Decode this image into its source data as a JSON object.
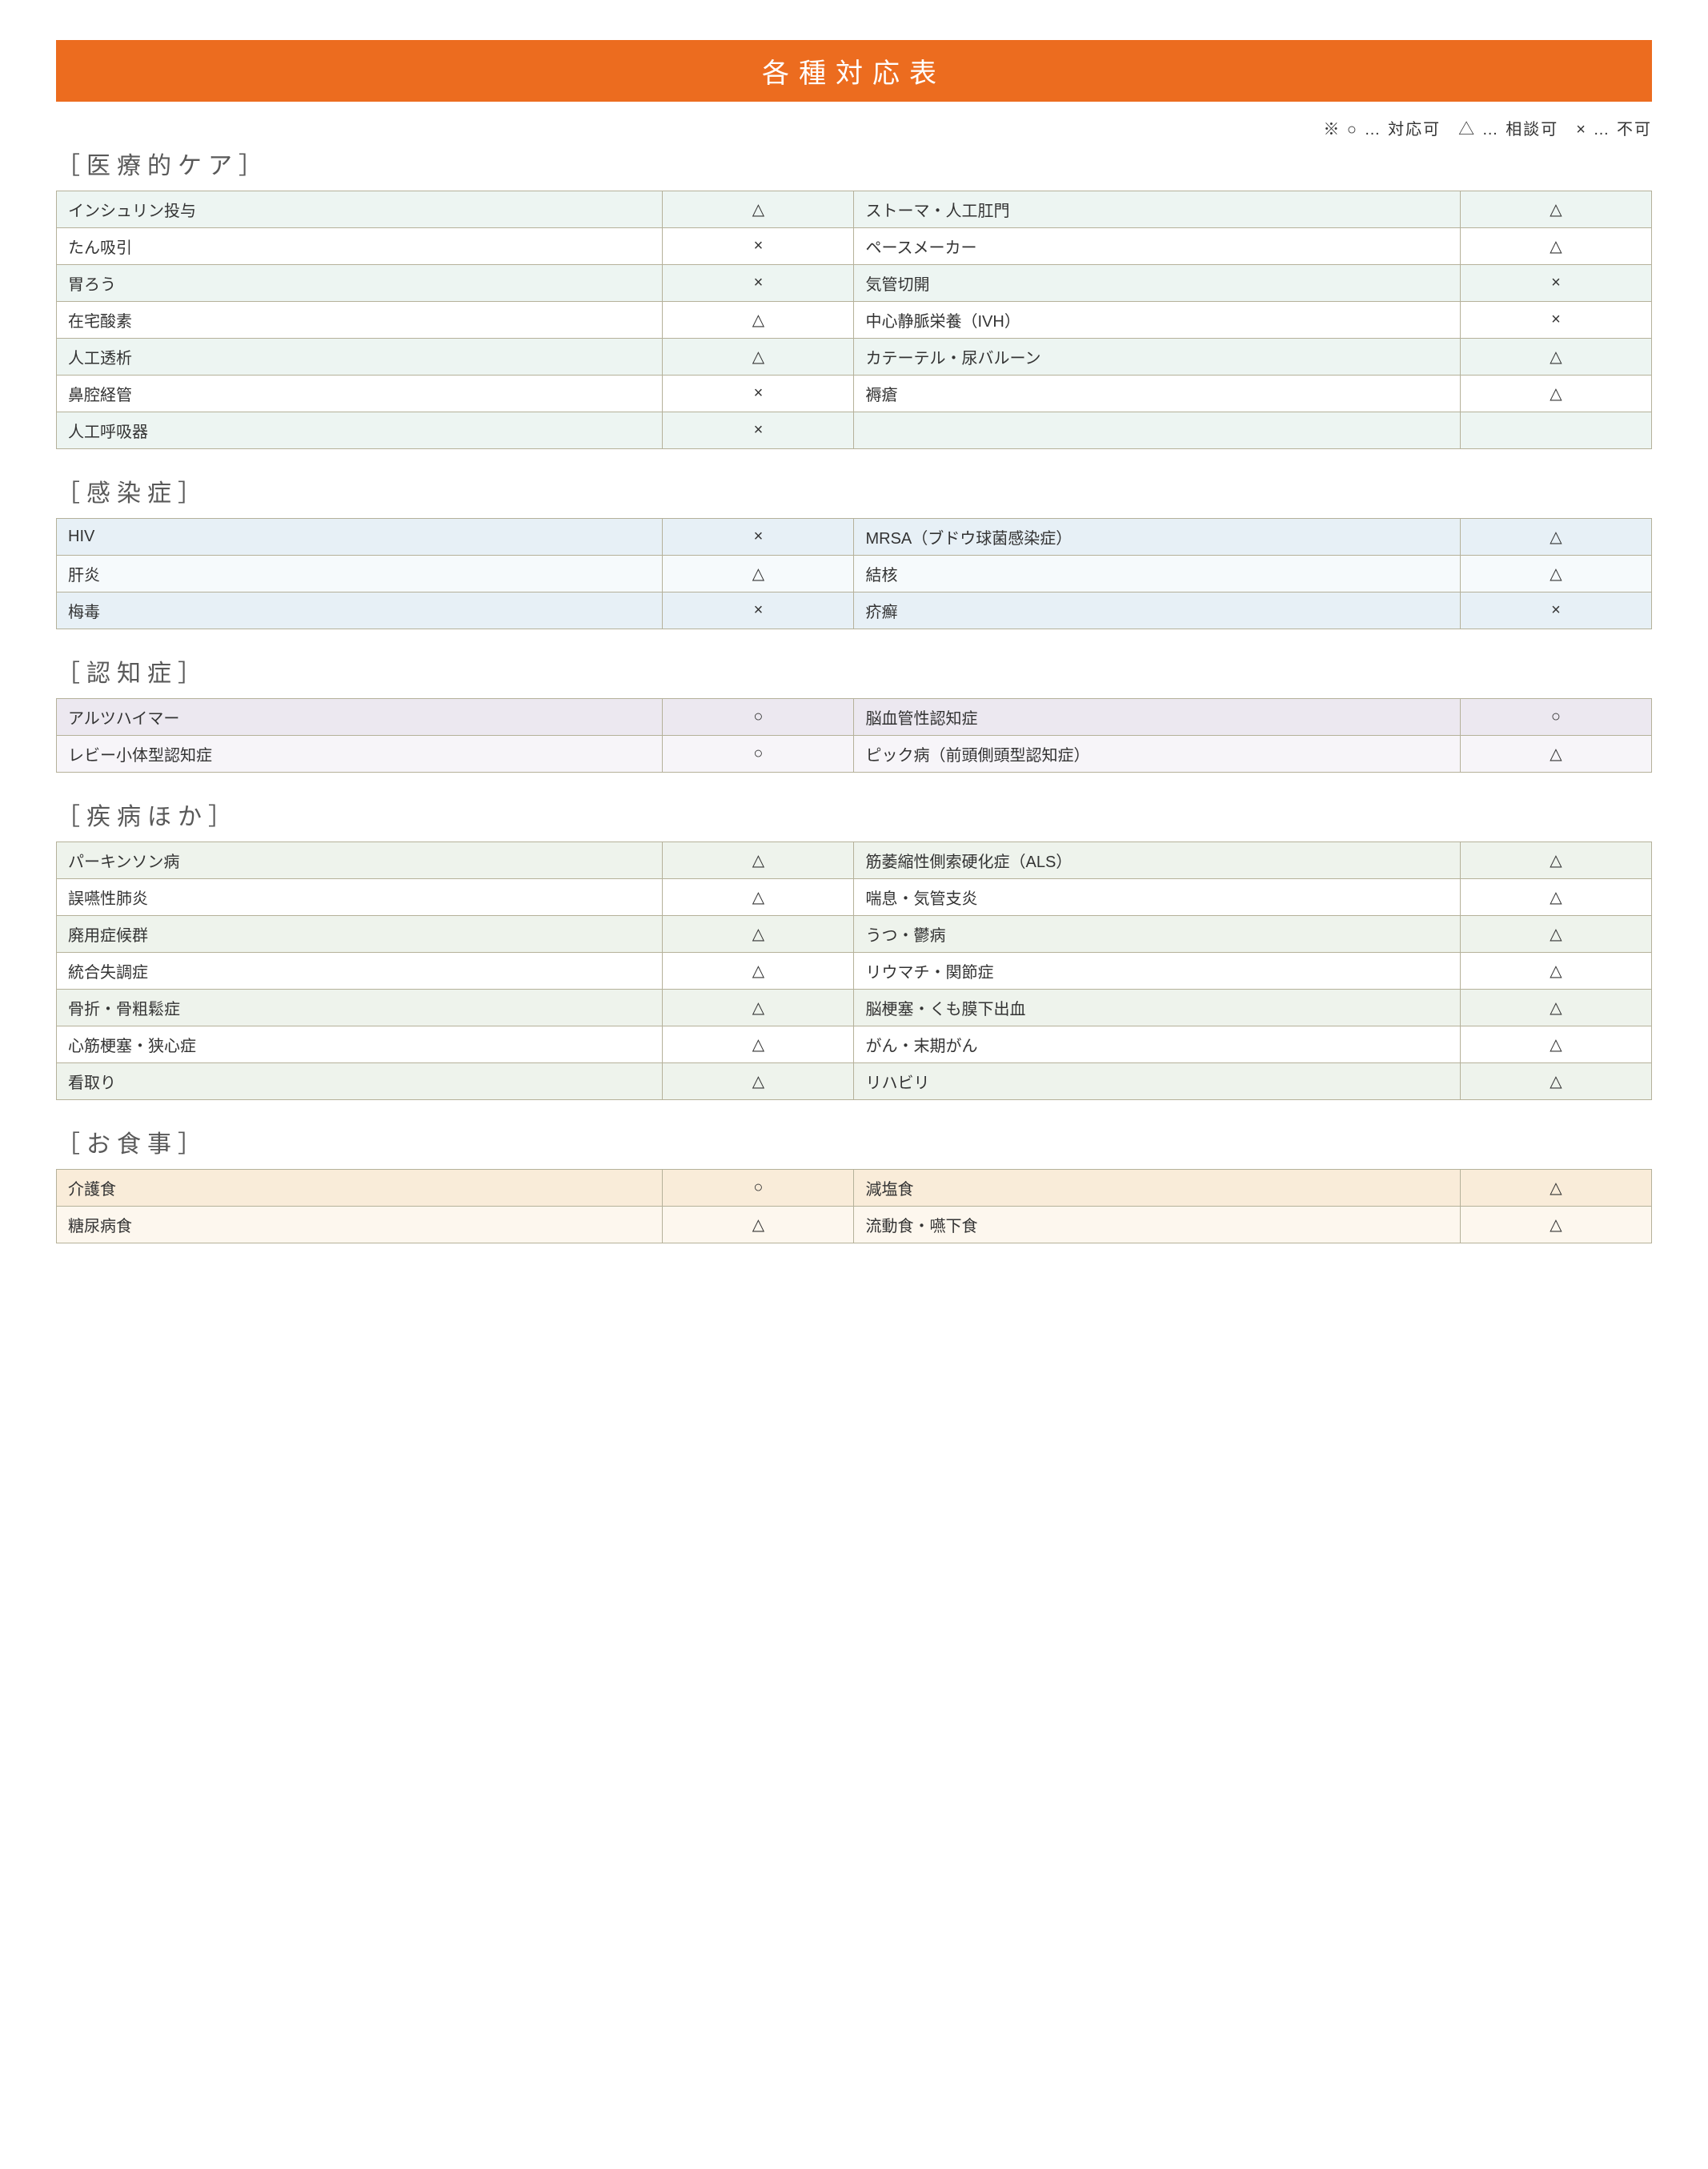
{
  "title": "各種対応表",
  "legend": "※ ○ … 対応可　△ … 相談可　× … 不可",
  "colors": {
    "titleBg": "#ec6c1f",
    "border": "#b5b19a",
    "careOdd": "#edf5f2",
    "careEven": "#ffffff",
    "infOdd": "#e7f0f6",
    "infEven": "#f6fafc",
    "demOdd": "#ece8f0",
    "demEven": "#f7f5f9",
    "illOdd": "#eef3ec",
    "illEven": "#ffffff",
    "mealOdd": "#f9ecd9",
    "mealEven": "#fdf7ee"
  },
  "sections": [
    {
      "heading": "［医療的ケア］",
      "palette": {
        "odd": "#edf5f2",
        "even": "#ffffff"
      },
      "rows": [
        {
          "l": "インシュリン投与",
          "ls": "△",
          "r": "ストーマ・人工肛門",
          "rs": "△"
        },
        {
          "l": "たん吸引",
          "ls": "×",
          "r": "ペースメーカー",
          "rs": "△"
        },
        {
          "l": "胃ろう",
          "ls": "×",
          "r": "気管切開",
          "rs": "×"
        },
        {
          "l": "在宅酸素",
          "ls": "△",
          "r": "中心静脈栄養（IVH）",
          "rs": "×"
        },
        {
          "l": "人工透析",
          "ls": "△",
          "r": "カテーテル・尿バルーン",
          "rs": "△"
        },
        {
          "l": "鼻腔経管",
          "ls": "×",
          "r": "褥瘡",
          "rs": "△"
        },
        {
          "l": "人工呼吸器",
          "ls": "×",
          "r": "",
          "rs": ""
        }
      ]
    },
    {
      "heading": "［感染症］",
      "palette": {
        "odd": "#e7f0f6",
        "even": "#f6fafc"
      },
      "rows": [
        {
          "l": "HIV",
          "ls": "×",
          "r": "MRSA（ブドウ球菌感染症）",
          "rs": "△"
        },
        {
          "l": "肝炎",
          "ls": "△",
          "r": "結核",
          "rs": "△"
        },
        {
          "l": "梅毒",
          "ls": "×",
          "r": "疥癬",
          "rs": "×"
        }
      ]
    },
    {
      "heading": "［認知症］",
      "palette": {
        "odd": "#ece8f0",
        "even": "#f7f5f9"
      },
      "rows": [
        {
          "l": "アルツハイマー",
          "ls": "○",
          "r": "脳血管性認知症",
          "rs": "○"
        },
        {
          "l": "レビー小体型認知症",
          "ls": "○",
          "r": "ピック病（前頭側頭型認知症）",
          "rs": "△"
        }
      ]
    },
    {
      "heading": "［疾病ほか］",
      "palette": {
        "odd": "#eef3ec",
        "even": "#ffffff"
      },
      "rows": [
        {
          "l": "パーキンソン病",
          "ls": "△",
          "r": "筋萎縮性側索硬化症（ALS）",
          "rs": "△"
        },
        {
          "l": "誤嚥性肺炎",
          "ls": "△",
          "r": "喘息・気管支炎",
          "rs": "△"
        },
        {
          "l": "廃用症候群",
          "ls": "△",
          "r": "うつ・鬱病",
          "rs": "△"
        },
        {
          "l": "統合失調症",
          "ls": "△",
          "r": "リウマチ・関節症",
          "rs": "△"
        },
        {
          "l": "骨折・骨粗鬆症",
          "ls": "△",
          "r": "脳梗塞・くも膜下出血",
          "rs": "△"
        },
        {
          "l": "心筋梗塞・狭心症",
          "ls": "△",
          "r": "がん・末期がん",
          "rs": "△"
        },
        {
          "l": "看取り",
          "ls": "△",
          "r": "リハビリ",
          "rs": "△"
        }
      ]
    },
    {
      "heading": "［お食事］",
      "palette": {
        "odd": "#f9ecd9",
        "even": "#fdf7ee"
      },
      "rows": [
        {
          "l": "介護食",
          "ls": "○",
          "r": "減塩食",
          "rs": "△"
        },
        {
          "l": "糖尿病食",
          "ls": "△",
          "r": "流動食・嚥下食",
          "rs": "△"
        }
      ]
    }
  ]
}
